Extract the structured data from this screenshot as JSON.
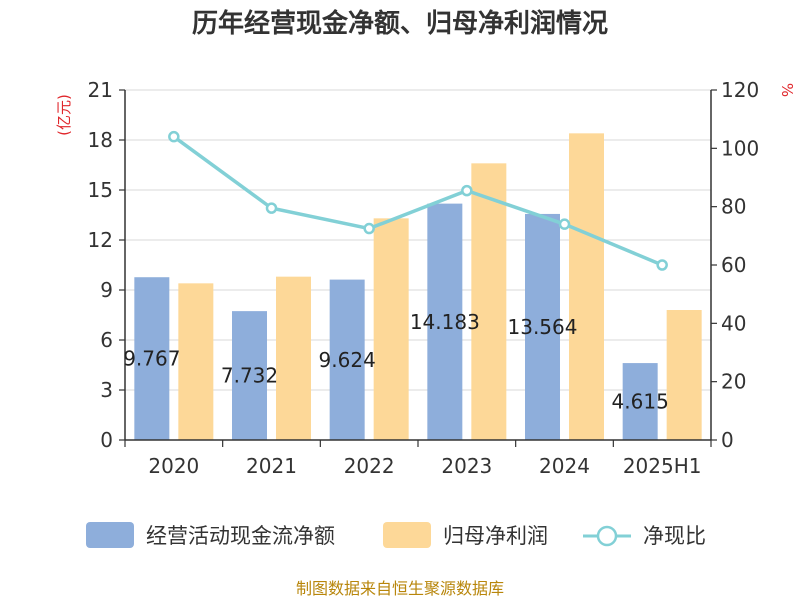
{
  "chart_data": {
    "type": "bar",
    "title": "历年经营现金净额、归母净利润情况",
    "categories": [
      "2020",
      "2021",
      "2022",
      "2023",
      "2024",
      "2025H1"
    ],
    "y_left_unit": "(亿元)",
    "y_right_unit": "%",
    "ylim_left": [
      0,
      21
    ],
    "yticks_left": [
      "0",
      "3",
      "6",
      "9",
      "12",
      "15",
      "18",
      "21"
    ],
    "ylim_right": [
      0,
      120
    ],
    "yticks_right": [
      "0",
      "20",
      "40",
      "60",
      "80",
      "100",
      "120"
    ],
    "grid": true,
    "legend_position": "bottom",
    "series": [
      {
        "name": "经营活动现金流净额",
        "type": "bar",
        "axis": "left",
        "color": "#8eaedb",
        "values": [
          9.767,
          7.732,
          9.624,
          14.183,
          13.564,
          4.615
        ],
        "labels": [
          "9.767",
          "7.732",
          "9.624",
          "14.183",
          "13.564",
          "4.615"
        ]
      },
      {
        "name": "归母净利润",
        "type": "bar",
        "axis": "left",
        "color": "#fdd898",
        "values": [
          9.4,
          9.8,
          13.3,
          16.6,
          18.4,
          7.8
        ]
      },
      {
        "name": "净现比",
        "type": "line",
        "axis": "right",
        "color": "#82d0d6",
        "values": [
          104,
          79.5,
          72.5,
          85.5,
          74,
          60
        ]
      }
    ],
    "source": "制图数据来自恒生聚源数据库"
  }
}
